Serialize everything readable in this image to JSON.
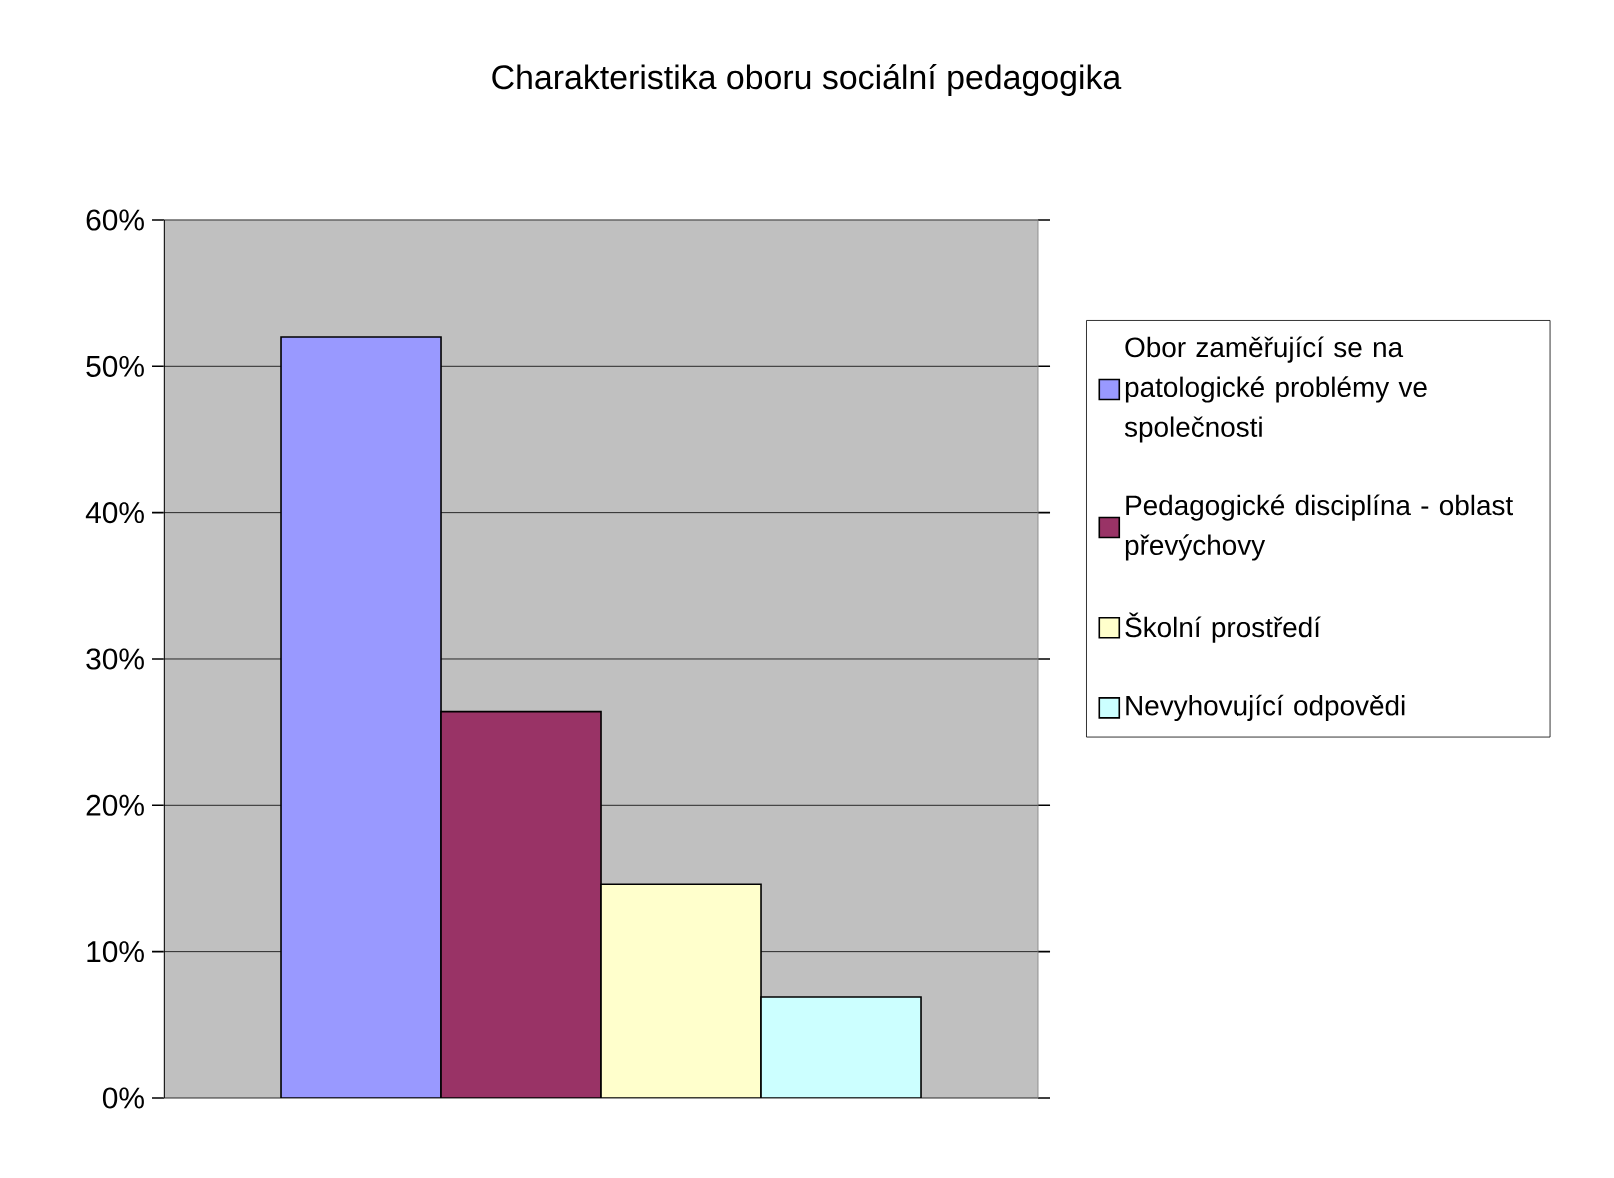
{
  "chart_data": {
    "type": "bar",
    "title": "Charakteristika oboru sociální pedagogika",
    "categories": [
      null
    ],
    "series": [
      {
        "name": "Obor zaměřující se na patologické problémy ve společnosti",
        "color": "#9999ff",
        "values": [
          52
        ]
      },
      {
        "name": "Pedagogické disciplína - oblast převýchovy",
        "color": "#993366",
        "values": [
          26.4
        ]
      },
      {
        "name": "Školní prostředí",
        "color": "#ffffcc",
        "values": [
          14.6
        ]
      },
      {
        "name": "Nevyhovující odpovědi",
        "color": "#ccffff",
        "values": [
          6.9
        ]
      }
    ],
    "ylim": [
      0,
      60
    ],
    "yticks": [
      {
        "value": 0,
        "label": "0%"
      },
      {
        "value": 10,
        "label": "10%"
      },
      {
        "value": 20,
        "label": "20%"
      },
      {
        "value": 30,
        "label": "30%"
      },
      {
        "value": 40,
        "label": "40%"
      },
      {
        "value": 50,
        "label": "50%"
      },
      {
        "value": 60,
        "label": "60%"
      }
    ],
    "grid": "y",
    "legend": "right"
  }
}
